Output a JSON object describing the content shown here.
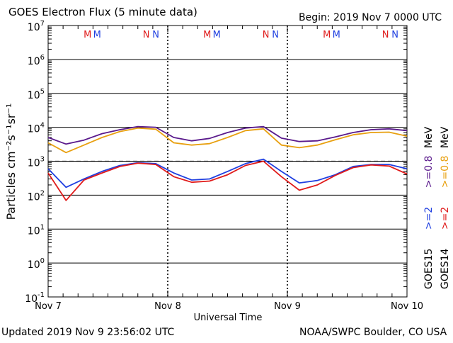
{
  "header": {
    "title": "GOES Electron Flux (5 minute data)",
    "begin": "Begin: 2019 Nov 7 0000 UTC"
  },
  "footer": {
    "updated": "Updated 2019 Nov  9 23:56:02 UTC",
    "credit": "NOAA/SWPC Boulder, CO USA"
  },
  "colors": {
    "goes15_2mev": "#1f3fe0",
    "goes14_2mev": "#e01b1b",
    "goes15_08mev": "#5a1a8c",
    "goes14_08mev": "#e8a010",
    "marker_m": "#e01b1b",
    "marker_n": "#1f3fe0"
  },
  "legend": {
    "goes15": {
      "prefix": "GOES15",
      "a": ">=2",
      "b": ">=0.8",
      "unit": "MeV"
    },
    "goes14": {
      "prefix": "GOES14",
      "a": ">=2",
      "b": ">=0.8",
      "unit": "MeV"
    }
  },
  "markers": [
    {
      "day": 0.33,
      "text": "M",
      "color": "marker_m"
    },
    {
      "day": 0.41,
      "text": "M",
      "color": "marker_n"
    },
    {
      "day": 0.82,
      "text": "N",
      "color": "marker_m"
    },
    {
      "day": 0.9,
      "text": "N",
      "color": "marker_n"
    },
    {
      "day": 1.33,
      "text": "M",
      "color": "marker_m"
    },
    {
      "day": 1.41,
      "text": "M",
      "color": "marker_n"
    },
    {
      "day": 1.82,
      "text": "N",
      "color": "marker_m"
    },
    {
      "day": 1.9,
      "text": "N",
      "color": "marker_n"
    },
    {
      "day": 2.33,
      "text": "M",
      "color": "marker_m"
    },
    {
      "day": 2.41,
      "text": "M",
      "color": "marker_n"
    },
    {
      "day": 2.82,
      "text": "N",
      "color": "marker_m"
    },
    {
      "day": 2.9,
      "text": "N",
      "color": "marker_n"
    }
  ],
  "chart_data": {
    "type": "line",
    "xlabel": "Universal Time",
    "ylabel": "Particles cm⁻²s⁻¹sr⁻¹",
    "y_scale": "log",
    "ylim": [
      0.1,
      10000000
    ],
    "xlim": [
      "Nov 7 00:00",
      "Nov 10 00:00"
    ],
    "x_tick_labels": [
      "Nov 7",
      "Nov 8",
      "Nov 9",
      "Nov 10"
    ],
    "y_tick_labels": [
      {
        "base": "10",
        "exp": "-1"
      },
      {
        "base": "10",
        "exp": "0"
      },
      {
        "base": "10",
        "exp": "1"
      },
      {
        "base": "10",
        "exp": "2"
      },
      {
        "base": "10",
        "exp": "3"
      },
      {
        "base": "10",
        "exp": "4"
      },
      {
        "base": "10",
        "exp": "5"
      },
      {
        "base": "10",
        "exp": "6"
      },
      {
        "base": "10",
        "exp": "7"
      }
    ],
    "threshold": {
      "value": 1000,
      "style": "dashed"
    },
    "grid": true,
    "x": [
      "Nov 7 00:00",
      "Nov 7 03:36",
      "Nov 7 07:12",
      "Nov 7 10:48",
      "Nov 7 14:24",
      "Nov 7 18:00",
      "Nov 7 21:36",
      "Nov 8 01:12",
      "Nov 8 04:48",
      "Nov 8 08:24",
      "Nov 8 12:00",
      "Nov 8 15:36",
      "Nov 8 19:12",
      "Nov 8 22:48",
      "Nov 9 02:24",
      "Nov 9 06:00",
      "Nov 9 09:36",
      "Nov 9 13:12",
      "Nov 9 16:48",
      "Nov 9 20:24",
      "Nov 10 00:00"
    ],
    "series": [
      {
        "color_key": "goes15_2mev",
        "values": [
          600,
          170,
          300,
          500,
          750,
          900,
          850,
          450,
          280,
          300,
          500,
          850,
          1150,
          500,
          230,
          270,
          400,
          700,
          800,
          800,
          600
        ]
      },
      {
        "color_key": "goes14_2mev",
        "values": [
          450,
          70,
          280,
          450,
          700,
          880,
          800,
          350,
          240,
          260,
          400,
          750,
          1000,
          350,
          140,
          200,
          380,
          650,
          780,
          720,
          420
        ]
      },
      {
        "color_key": "goes15_08mev",
        "values": [
          5000,
          3200,
          4200,
          6500,
          8500,
          10500,
          10000,
          5000,
          4000,
          4700,
          7000,
          9500,
          10500,
          4800,
          3800,
          4000,
          5200,
          7000,
          8500,
          9000,
          8000
        ]
      },
      {
        "color_key": "goes14_08mev",
        "values": [
          3500,
          1800,
          3000,
          5000,
          7500,
          9500,
          8800,
          3500,
          3000,
          3300,
          5000,
          8000,
          9000,
          3000,
          2500,
          3000,
          4300,
          6000,
          7000,
          7200,
          5500
        ]
      }
    ]
  }
}
